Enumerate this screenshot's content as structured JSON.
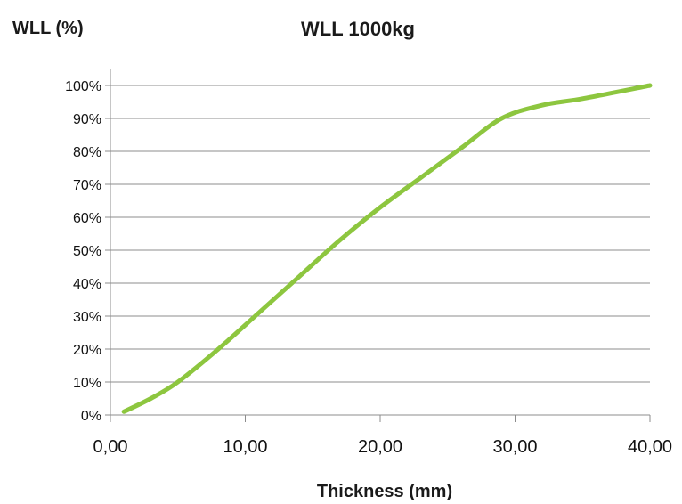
{
  "chart_data": {
    "type": "line",
    "title": "WLL 1000kg",
    "xlabel": "Thickness (mm)",
    "ylabel": "WLL  (%)",
    "xlim": [
      0,
      40
    ],
    "ylim": [
      0,
      100
    ],
    "xticks": [
      0,
      10,
      20,
      30,
      40
    ],
    "xtick_labels": [
      "0,00",
      "10,00",
      "20,00",
      "30,00",
      "40,00"
    ],
    "yticks": [
      0,
      10,
      20,
      30,
      40,
      50,
      60,
      70,
      80,
      90,
      100
    ],
    "ytick_labels": [
      "0%",
      "10%",
      "20%",
      "30%",
      "40%",
      "50%",
      "60%",
      "70%",
      "80%",
      "90%",
      "100%"
    ],
    "grid": true,
    "series": [
      {
        "color": "#8dc63f",
        "x": [
          1,
          3,
          5,
          8,
          11,
          14,
          17,
          20,
          23,
          26,
          29,
          32,
          35,
          40
        ],
        "y": [
          1,
          5,
          10,
          20,
          31,
          42,
          53,
          63,
          72,
          81,
          90,
          94,
          96,
          100
        ]
      }
    ]
  }
}
